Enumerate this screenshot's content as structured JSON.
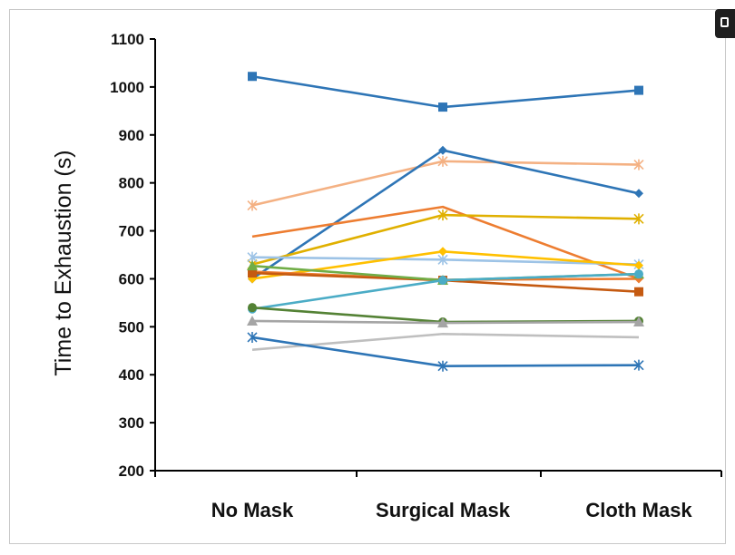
{
  "chart_data": {
    "type": "line",
    "title": "",
    "ylabel": "Time to Exhaustion  (s)",
    "xlabel": "",
    "categories": [
      "No Mask",
      "Surgical Mask",
      "Cloth Mask"
    ],
    "ylim": [
      200,
      1100
    ],
    "yticks": [
      200,
      300,
      400,
      500,
      600,
      700,
      800,
      900,
      1000,
      1100
    ],
    "grid": false,
    "legend": "none",
    "series": [
      {
        "values": [
          1022,
          958,
          993
        ],
        "color": "#2E75B6",
        "marker": "square"
      },
      {
        "values": [
          753,
          845,
          838
        ],
        "color": "#F4B183",
        "marker": "star"
      },
      {
        "values": [
          600,
          868,
          778
        ],
        "color": "#2E75B6",
        "marker": "diamond"
      },
      {
        "values": [
          688,
          750,
          600
        ],
        "color": "#ED7D31",
        "marker": "none"
      },
      {
        "values": [
          630,
          733,
          725
        ],
        "color": "#E0B000",
        "marker": "star"
      },
      {
        "values": [
          645,
          640,
          630
        ],
        "color": "#9DC3E6",
        "marker": "star"
      },
      {
        "values": [
          600,
          657,
          628
        ],
        "color": "#FFC000",
        "marker": "diamond"
      },
      {
        "values": [
          615,
          598,
          600
        ],
        "color": "#ED7D31",
        "marker": "diamond"
      },
      {
        "values": [
          612,
          597,
          573
        ],
        "color": "#C55A11",
        "marker": "square"
      },
      {
        "values": [
          627,
          597,
          610
        ],
        "color": "#70AD47",
        "marker": "triangle"
      },
      {
        "values": [
          537,
          597,
          610
        ],
        "color": "#4BACC6",
        "marker": "circle"
      },
      {
        "values": [
          540,
          510,
          512
        ],
        "color": "#548235",
        "marker": "circle"
      },
      {
        "values": [
          512,
          508,
          510
        ],
        "color": "#A5A5A5",
        "marker": "triangle"
      },
      {
        "values": [
          452,
          485,
          478
        ],
        "color": "#BFBFBF",
        "marker": "none"
      },
      {
        "values": [
          478,
          418,
          420
        ],
        "color": "#2E75B6",
        "marker": "star"
      }
    ]
  }
}
